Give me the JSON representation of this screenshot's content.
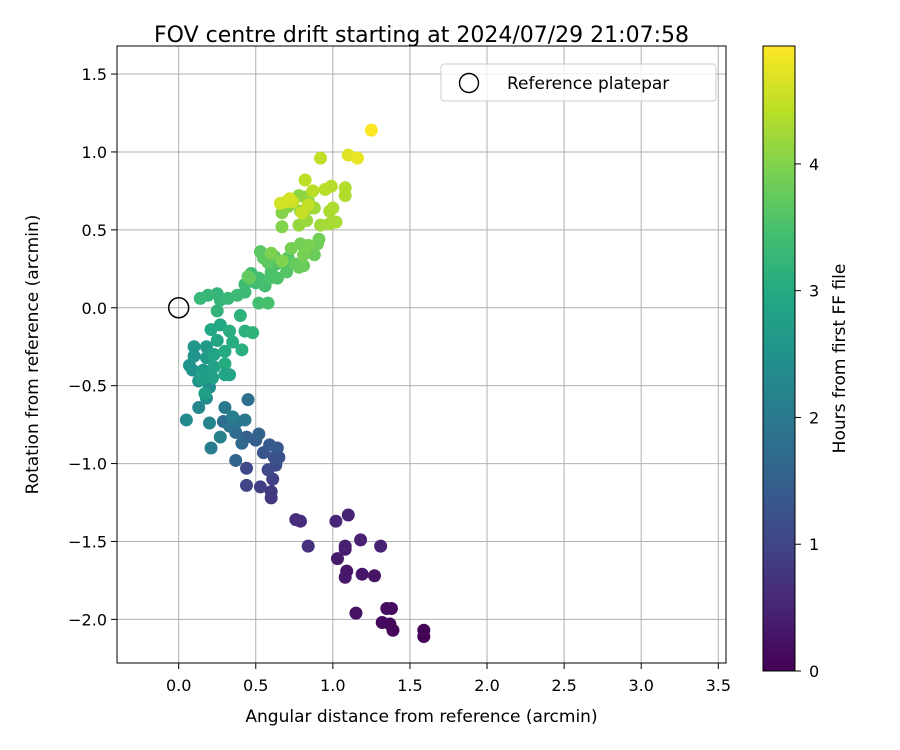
{
  "chart_data": {
    "type": "scatter",
    "title": "FOV centre drift starting at 2024/07/29 21:07:58",
    "xlabel": "Angular distance from reference (arcmin)",
    "ylabel": "Rotation from reference (arcmin)",
    "xlim": [
      -0.4,
      3.55
    ],
    "ylim": [
      -2.28,
      1.68
    ],
    "x_ticks": [
      0.0,
      0.5,
      1.0,
      1.5,
      2.0,
      2.5,
      3.0,
      3.5
    ],
    "x_tick_labels": [
      "0.0",
      "0.5",
      "1.0",
      "1.5",
      "2.0",
      "2.5",
      "3.0",
      "3.5"
    ],
    "y_ticks": [
      -2.0,
      -1.5,
      -1.0,
      -0.5,
      0.0,
      0.5,
      1.0,
      1.5
    ],
    "y_tick_labels": [
      "−2.0",
      "−1.5",
      "−1.0",
      "−0.5",
      "0.0",
      "0.5",
      "1.0",
      "1.5"
    ],
    "grid": true,
    "legend": {
      "placement": "upper right",
      "label": "Reference platepar",
      "marker": "open-circle"
    },
    "reference_point": {
      "x": 0.0,
      "y": 0.0
    },
    "colorbar": {
      "label": "Hours from first FF file",
      "colormap": "viridis",
      "range": [
        0,
        4.93
      ],
      "ticks": [
        0,
        1,
        2,
        3,
        4
      ],
      "tick_labels": [
        "0",
        "1",
        "2",
        "3",
        "4"
      ]
    },
    "series": [
      {
        "point_fields": [
          "x",
          "y",
          "hours"
        ],
        "points": [
          [
            1.59,
            -2.11,
            0.02
          ],
          [
            1.59,
            -2.07,
            0.05
          ],
          [
            1.39,
            -2.07,
            0.08
          ],
          [
            1.37,
            -2.03,
            0.1
          ],
          [
            1.32,
            -2.02,
            0.13
          ],
          [
            1.38,
            -1.93,
            0.16
          ],
          [
            1.35,
            -1.93,
            0.19
          ],
          [
            1.15,
            -1.96,
            0.22
          ],
          [
            1.27,
            -1.72,
            0.25
          ],
          [
            1.19,
            -1.71,
            0.28
          ],
          [
            1.09,
            -1.69,
            0.3
          ],
          [
            1.08,
            -1.73,
            0.33
          ],
          [
            1.03,
            -1.61,
            0.36
          ],
          [
            1.08,
            -1.55,
            0.39
          ],
          [
            1.08,
            -1.53,
            0.42
          ],
          [
            1.18,
            -1.49,
            0.45
          ],
          [
            1.31,
            -1.53,
            0.48
          ],
          [
            1.1,
            -1.33,
            0.5
          ],
          [
            1.02,
            -1.37,
            0.55
          ],
          [
            0.79,
            -1.37,
            0.6
          ],
          [
            0.76,
            -1.36,
            0.65
          ],
          [
            0.84,
            -1.53,
            0.7
          ],
          [
            0.6,
            -1.22,
            0.8
          ],
          [
            0.6,
            -1.18,
            0.85
          ],
          [
            0.53,
            -1.15,
            0.9
          ],
          [
            0.61,
            -1.1,
            0.95
          ],
          [
            0.44,
            -1.14,
            1.0
          ],
          [
            0.44,
            -1.03,
            1.05
          ],
          [
            0.58,
            -1.04,
            1.1
          ],
          [
            0.63,
            -1.01,
            1.15
          ],
          [
            0.62,
            -0.96,
            1.2
          ],
          [
            0.65,
            -0.96,
            1.25
          ],
          [
            0.55,
            -0.93,
            1.3
          ],
          [
            0.64,
            -0.9,
            1.35
          ],
          [
            0.59,
            -0.88,
            1.4
          ],
          [
            0.5,
            -0.85,
            1.45
          ],
          [
            0.44,
            -0.83,
            1.5
          ],
          [
            0.52,
            -0.81,
            1.55
          ],
          [
            0.37,
            -0.98,
            1.6
          ],
          [
            0.41,
            -0.87,
            1.65
          ],
          [
            0.37,
            -0.8,
            1.7
          ],
          [
            0.29,
            -0.73,
            1.75
          ],
          [
            0.45,
            -0.59,
            1.8
          ],
          [
            0.33,
            -0.76,
            1.85
          ],
          [
            0.38,
            -0.73,
            1.9
          ],
          [
            0.43,
            -0.72,
            1.95
          ],
          [
            0.3,
            -0.64,
            2.0
          ],
          [
            0.21,
            -0.9,
            2.05
          ],
          [
            0.35,
            -0.7,
            2.1
          ],
          [
            0.27,
            -0.83,
            2.15
          ],
          [
            0.2,
            -0.74,
            2.2
          ],
          [
            0.13,
            -0.64,
            2.25
          ],
          [
            0.05,
            -0.72,
            2.3
          ],
          [
            0.18,
            -0.58,
            2.35
          ],
          [
            0.2,
            -0.51,
            2.4
          ],
          [
            0.13,
            -0.47,
            2.45
          ],
          [
            0.09,
            -0.4,
            2.5
          ],
          [
            0.07,
            -0.37,
            2.52
          ],
          [
            0.1,
            -0.31,
            2.55
          ],
          [
            0.1,
            -0.25,
            2.58
          ],
          [
            0.18,
            -0.25,
            2.62
          ],
          [
            0.18,
            -0.32,
            2.65
          ],
          [
            0.16,
            -0.4,
            2.68
          ],
          [
            0.15,
            -0.46,
            2.72
          ],
          [
            0.2,
            -0.43,
            2.75
          ],
          [
            0.17,
            -0.55,
            2.78
          ],
          [
            0.22,
            -0.45,
            2.8
          ],
          [
            0.23,
            -0.38,
            2.83
          ],
          [
            0.23,
            -0.3,
            2.86
          ],
          [
            0.25,
            -0.21,
            2.9
          ],
          [
            0.21,
            -0.14,
            2.93
          ],
          [
            0.27,
            -0.11,
            2.96
          ],
          [
            0.3,
            -0.28,
            3.0
          ],
          [
            0.3,
            -0.36,
            3.02
          ],
          [
            0.3,
            -0.43,
            2.9
          ],
          [
            0.33,
            -0.43,
            2.88
          ],
          [
            0.35,
            -0.22,
            3.05
          ],
          [
            0.33,
            -0.15,
            3.08
          ],
          [
            0.41,
            -0.27,
            3.1
          ],
          [
            0.43,
            -0.15,
            3.12
          ],
          [
            0.4,
            -0.05,
            3.15
          ],
          [
            0.48,
            -0.16,
            3.18
          ],
          [
            0.25,
            -0.02,
            3.2
          ],
          [
            0.27,
            0.05,
            3.22
          ],
          [
            0.25,
            0.09,
            3.24
          ],
          [
            0.19,
            0.08,
            3.26
          ],
          [
            0.14,
            0.06,
            3.28
          ],
          [
            0.32,
            0.06,
            3.3
          ],
          [
            0.38,
            0.08,
            3.32
          ],
          [
            0.43,
            0.1,
            3.34
          ],
          [
            0.43,
            0.15,
            3.36
          ],
          [
            0.5,
            0.16,
            3.38
          ],
          [
            0.47,
            0.22,
            3.4
          ],
          [
            0.52,
            0.03,
            3.42
          ],
          [
            0.52,
            0.19,
            3.44
          ],
          [
            0.56,
            0.14,
            3.46
          ],
          [
            0.58,
            0.03,
            3.48
          ],
          [
            0.59,
            0.19,
            3.5
          ],
          [
            0.6,
            0.23,
            3.52
          ],
          [
            0.64,
            0.19,
            3.54
          ],
          [
            0.63,
            0.28,
            3.56
          ],
          [
            0.68,
            0.29,
            3.58
          ],
          [
            0.7,
            0.23,
            3.6
          ],
          [
            0.71,
            0.32,
            3.62
          ],
          [
            0.62,
            0.33,
            3.64
          ],
          [
            0.53,
            0.36,
            3.66
          ],
          [
            0.55,
            0.32,
            3.68
          ],
          [
            0.58,
            0.29,
            3.7
          ],
          [
            0.46,
            0.19,
            3.72
          ],
          [
            0.45,
            0.2,
            3.74
          ],
          [
            0.76,
            0.28,
            3.76
          ],
          [
            0.78,
            0.26,
            3.78
          ],
          [
            0.81,
            0.27,
            3.8
          ],
          [
            0.88,
            0.34,
            3.82
          ],
          [
            0.9,
            0.41,
            3.84
          ],
          [
            0.91,
            0.44,
            3.86
          ],
          [
            0.79,
            0.41,
            3.88
          ],
          [
            0.73,
            0.38,
            3.9
          ],
          [
            0.81,
            0.34,
            3.92
          ],
          [
            0.84,
            0.4,
            3.94
          ],
          [
            0.6,
            0.35,
            3.96
          ],
          [
            0.67,
            0.3,
            3.98
          ],
          [
            0.67,
            0.52,
            4.0
          ],
          [
            0.67,
            0.61,
            4.02
          ],
          [
            0.71,
            0.65,
            4.04
          ],
          [
            0.74,
            0.68,
            4.06
          ],
          [
            0.78,
            0.72,
            4.08
          ],
          [
            0.82,
            0.71,
            4.1
          ],
          [
            0.84,
            0.69,
            4.12
          ],
          [
            0.79,
            0.62,
            4.14
          ],
          [
            0.78,
            0.53,
            4.16
          ],
          [
            0.83,
            0.56,
            4.18
          ],
          [
            0.85,
            0.64,
            4.2
          ],
          [
            0.88,
            0.64,
            4.22
          ],
          [
            0.92,
            0.53,
            4.24
          ],
          [
            0.98,
            0.54,
            4.26
          ],
          [
            1.02,
            0.55,
            4.28
          ],
          [
            0.98,
            0.62,
            4.3
          ],
          [
            1.0,
            0.64,
            4.32
          ],
          [
            1.08,
            0.72,
            4.34
          ],
          [
            1.08,
            0.77,
            4.36
          ],
          [
            0.99,
            0.78,
            4.38
          ],
          [
            0.95,
            0.76,
            4.4
          ],
          [
            0.87,
            0.75,
            4.42
          ],
          [
            0.82,
            0.82,
            4.44
          ],
          [
            0.92,
            0.96,
            4.46
          ],
          [
            0.84,
            0.66,
            4.48
          ],
          [
            0.8,
            0.61,
            4.5
          ],
          [
            0.74,
            0.68,
            4.53
          ],
          [
            0.7,
            0.68,
            4.56
          ],
          [
            0.66,
            0.67,
            4.6
          ],
          [
            0.72,
            0.7,
            4.63
          ],
          [
            1.1,
            0.98,
            4.7
          ],
          [
            1.16,
            0.96,
            4.8
          ],
          [
            1.25,
            1.14,
            4.93
          ]
        ]
      }
    ]
  }
}
